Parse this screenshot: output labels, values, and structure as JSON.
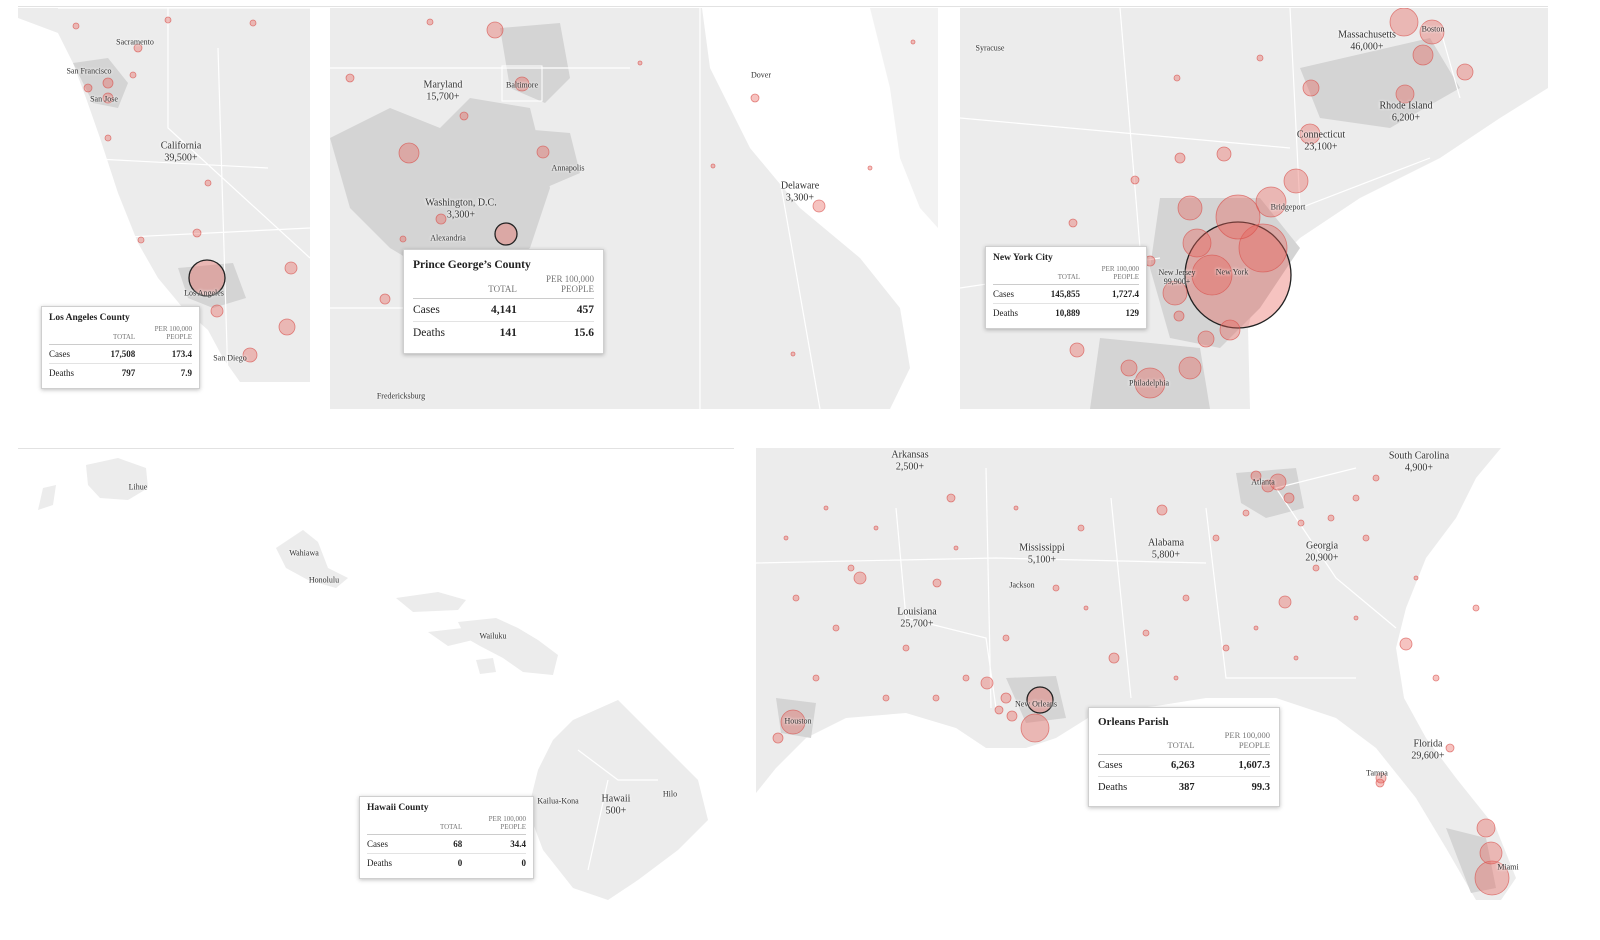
{
  "colors": {
    "bubble": "#e8605a",
    "land": "#ececec",
    "urban": "#d4d4d4"
  },
  "panels": {
    "california": {
      "labels": [
        "Sacramento",
        "San Francisco",
        "San Jose",
        "California",
        "39,500+",
        "Los Angeles",
        "San Diego"
      ],
      "tooltip": {
        "title": "Los Angeles County",
        "col_total": "TOTAL",
        "col_per": "PER 100,000",
        "col_people": "PEOPLE",
        "rows": [
          {
            "label": "Cases",
            "total": "17,508",
            "per": "173.4"
          },
          {
            "label": "Deaths",
            "total": "797",
            "per": "7.9"
          }
        ]
      }
    },
    "dc": {
      "labels": [
        "Maryland",
        "15,700+",
        "Baltimore",
        "Dover",
        "Annapolis",
        "Delaware",
        "3,300+",
        "Washington, D.C.",
        "3,300+",
        "Alexandria",
        "Fredericksburg"
      ],
      "tooltip": {
        "title": "Prince George’s County",
        "col_total": "TOTAL",
        "col_per": "PER 100,000",
        "col_people": "PEOPLE",
        "rows": [
          {
            "label": "Cases",
            "total": "4,141",
            "per": "457"
          },
          {
            "label": "Deaths",
            "total": "141",
            "per": "15.6"
          }
        ]
      }
    },
    "northeast": {
      "labels": [
        "Syracuse",
        "Massachusetts",
        "46,000+",
        "Boston",
        "Rhode Island",
        "6,200+",
        "Connecticut",
        "23,100+",
        "Bridgeport",
        "New Jersey",
        "99,900+",
        "New York",
        "Philadelphia"
      ],
      "tooltip": {
        "title": "New York City",
        "col_total": "TOTAL",
        "col_per": "PER 100,000",
        "col_people": "PEOPLE",
        "rows": [
          {
            "label": "Cases",
            "total": "145,855",
            "per": "1,727.4"
          },
          {
            "label": "Deaths",
            "total": "10,889",
            "per": "129"
          }
        ]
      }
    },
    "hawaii": {
      "labels": [
        "Lihue",
        "Wahiawa",
        "Honolulu",
        "Wailuku",
        "Hilo",
        "Kailua-Kona",
        "Hawaii",
        "500+"
      ],
      "tooltip": {
        "title": "Hawaii County",
        "col_total": "TOTAL",
        "col_per": "PER 100,000",
        "col_people": "PEOPLE",
        "rows": [
          {
            "label": "Cases",
            "total": "68",
            "per": "34.4"
          },
          {
            "label": "Deaths",
            "total": "0",
            "per": "0"
          }
        ]
      }
    },
    "south": {
      "labels": [
        "Arkansas",
        "2,500+",
        "South Carolina",
        "4,900+",
        "Atlanta",
        "Mississippi",
        "5,100+",
        "Alabama",
        "5,800+",
        "Georgia",
        "20,900+",
        "Jackson",
        "Louisiana",
        "25,700+",
        "Houston",
        "New Orleans",
        "Florida",
        "29,600+",
        "Tampa",
        "Miami"
      ],
      "tooltip": {
        "title": "Orleans Parish",
        "col_total": "TOTAL",
        "col_per": "PER 100,000",
        "col_people": "PEOPLE",
        "rows": [
          {
            "label": "Cases",
            "total": "6,263",
            "per": "1,607.3"
          },
          {
            "label": "Deaths",
            "total": "387",
            "per": "99.3"
          }
        ]
      }
    }
  }
}
